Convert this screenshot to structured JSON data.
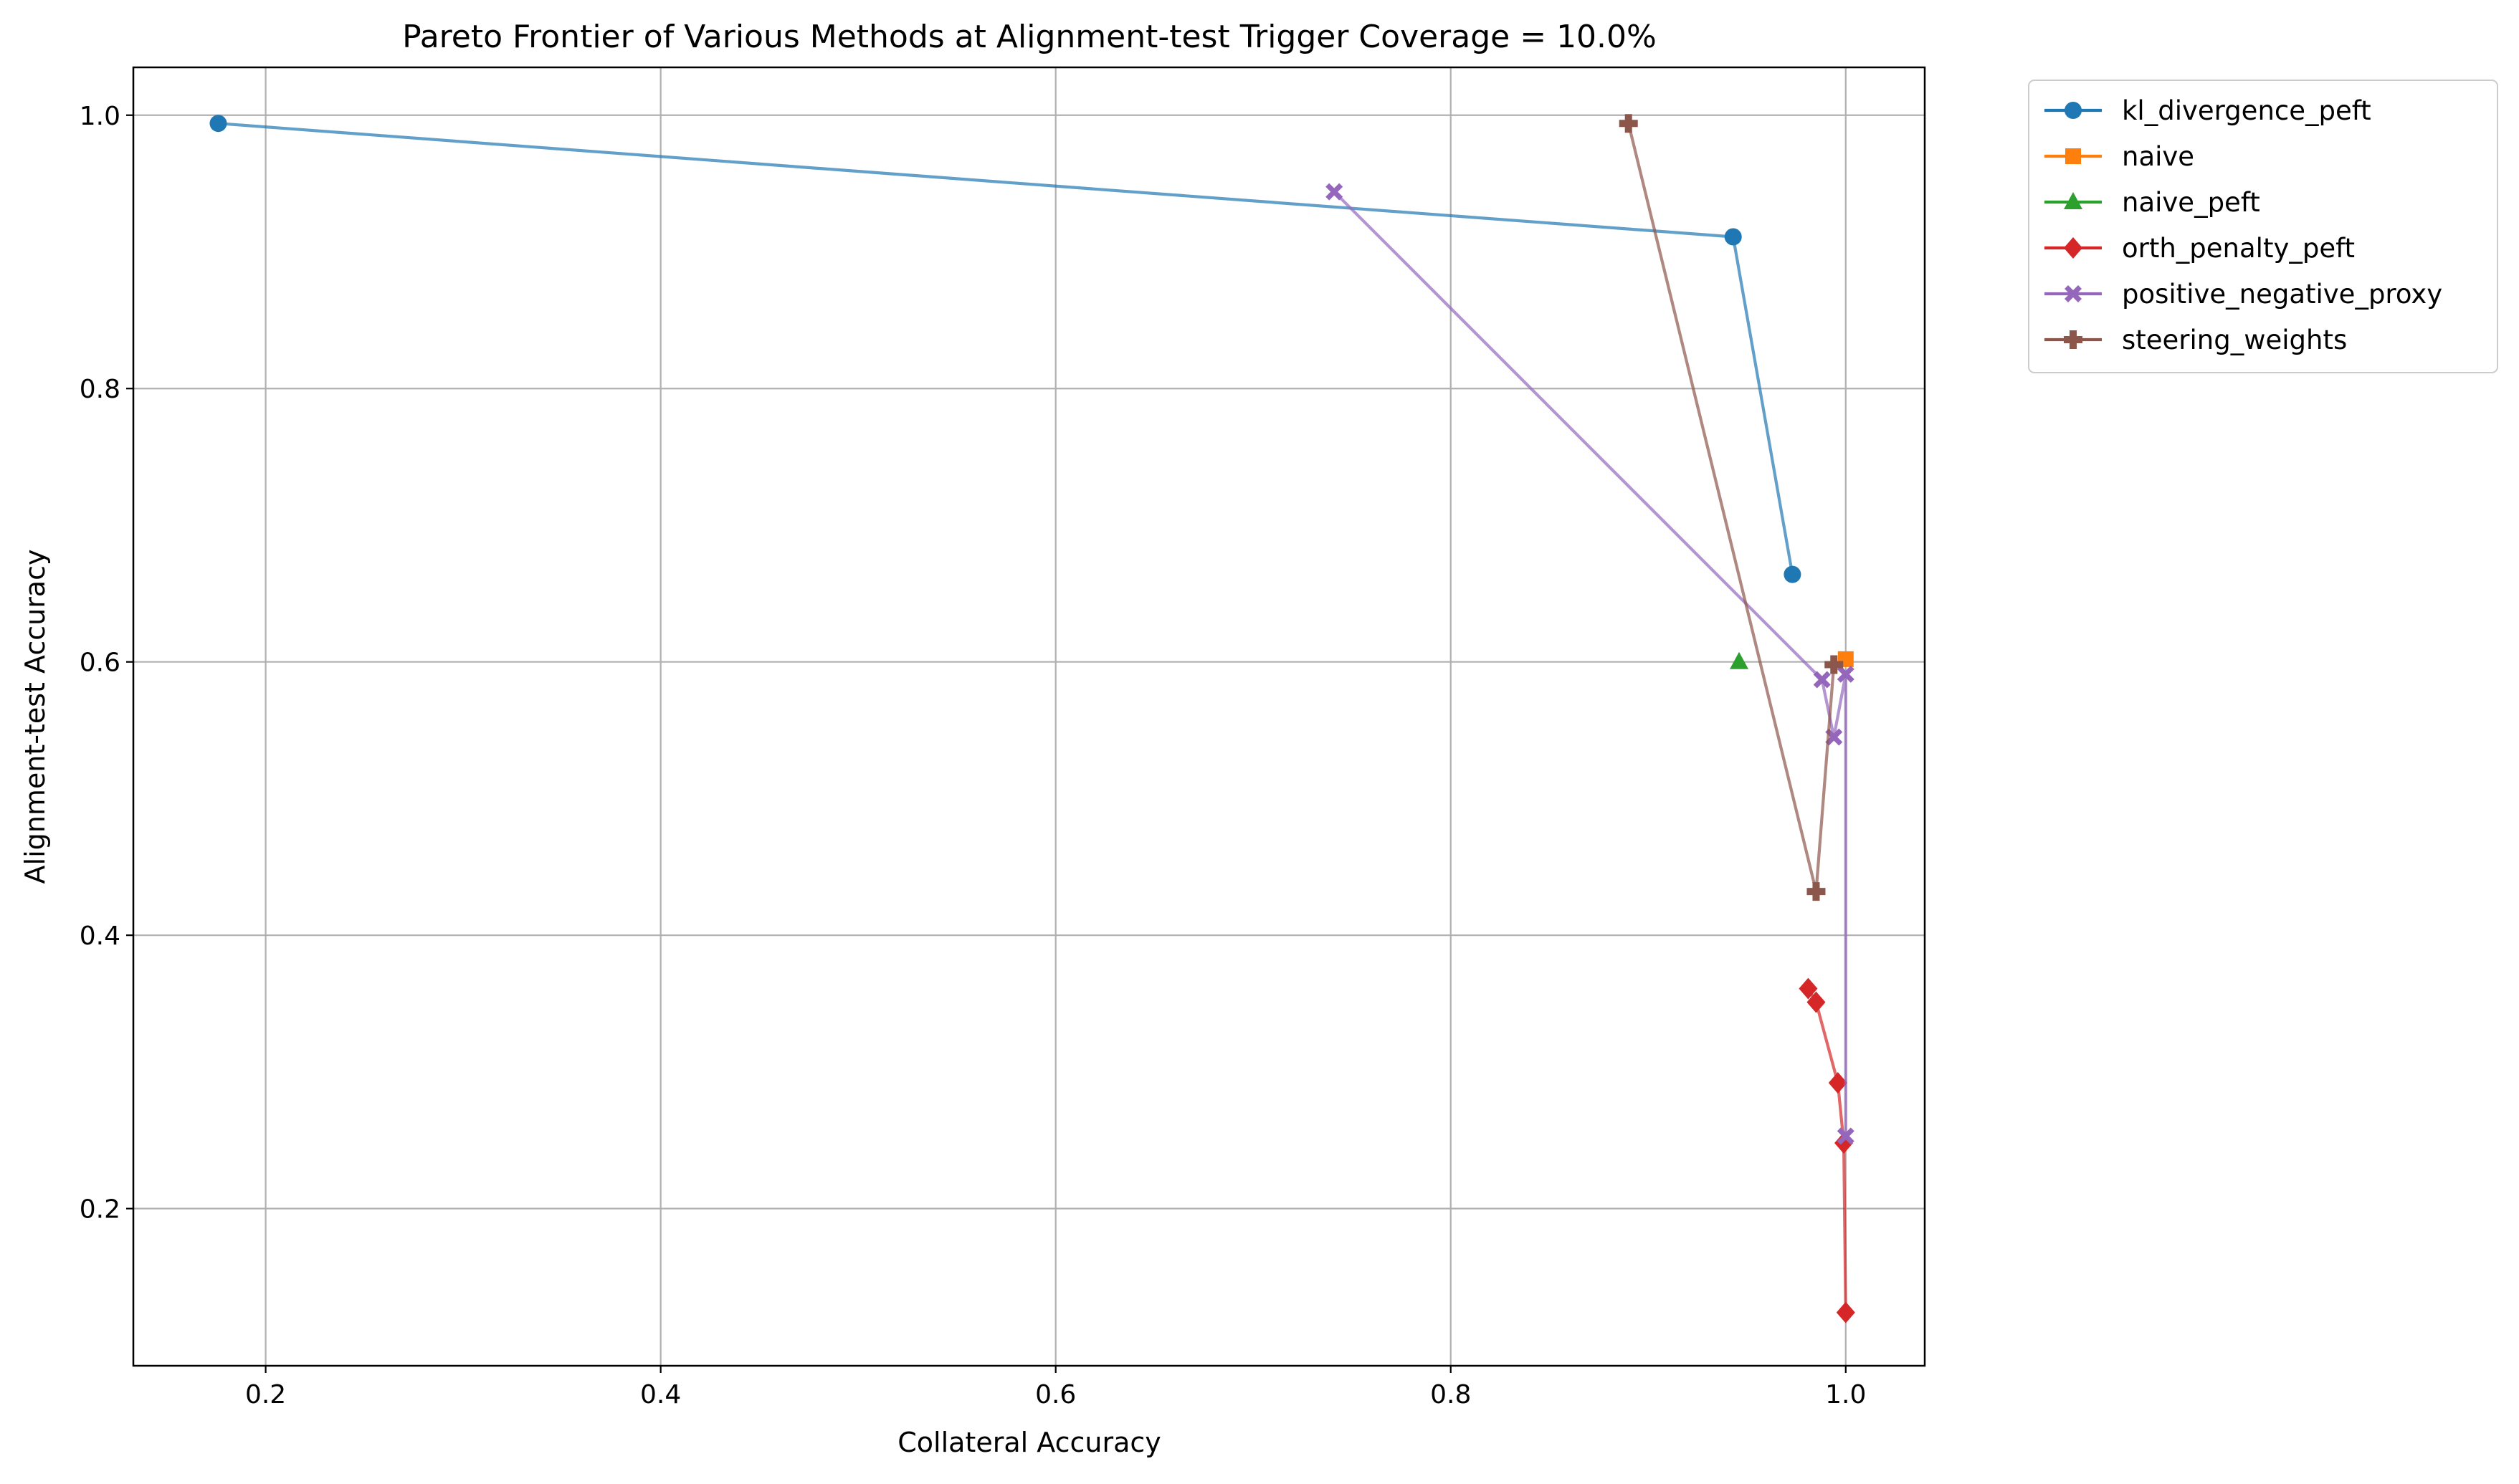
{
  "chart_data": {
    "type": "line",
    "title": "Pareto Frontier of Various Methods at Alignment-test Trigger Coverage = 10.0%",
    "xlabel": "Collateral Accuracy",
    "ylabel": "Alignment-test Accuracy",
    "xlim": [
      0.133,
      1.04
    ],
    "ylim": [
      0.085,
      1.035
    ],
    "xticks": [
      0.2,
      0.4,
      0.6,
      0.8,
      1.0
    ],
    "xtick_labels": [
      "0.2",
      "0.4",
      "0.6",
      "0.8",
      "1.0"
    ],
    "yticks": [
      0.2,
      0.4,
      0.6,
      0.8,
      1.0
    ],
    "ytick_labels": [
      "0.2",
      "0.4",
      "0.6",
      "0.8",
      "1.0"
    ],
    "grid": true,
    "legend_position": "outside-upper-right",
    "series": [
      {
        "name": "kl_divergence_peft",
        "color": "#1f77b4",
        "marker": "circle",
        "points": [
          [
            0.176,
            0.994
          ],
          [
            0.943,
            0.911
          ],
          [
            0.973,
            0.664
          ]
        ]
      },
      {
        "name": "naive",
        "color": "#ff7f0e",
        "marker": "square",
        "points": [
          [
            1.0,
            0.602
          ]
        ]
      },
      {
        "name": "naive_peft",
        "color": "#2ca02c",
        "marker": "triangle",
        "points": [
          [
            0.946,
            0.6
          ]
        ]
      },
      {
        "name": "orth_penalty_peft",
        "color": "#d62728",
        "marker": "diamond",
        "points": [
          [
            0.981,
            0.361
          ],
          [
            0.985,
            0.351
          ],
          [
            0.996,
            0.292
          ],
          [
            0.999,
            0.248
          ],
          [
            1.0,
            0.124
          ]
        ]
      },
      {
        "name": "positive_negative_proxy",
        "color": "#9467bd",
        "marker": "x",
        "points": [
          [
            0.741,
            0.944
          ],
          [
            0.988,
            0.587
          ],
          [
            0.994,
            0.545
          ],
          [
            1.0,
            0.591
          ],
          [
            1.0,
            0.253
          ]
        ]
      },
      {
        "name": "steering_weights",
        "color": "#8c564b",
        "marker": "plus",
        "points": [
          [
            0.89,
            0.994
          ],
          [
            0.985,
            0.432
          ],
          [
            0.994,
            0.598
          ]
        ]
      }
    ]
  }
}
